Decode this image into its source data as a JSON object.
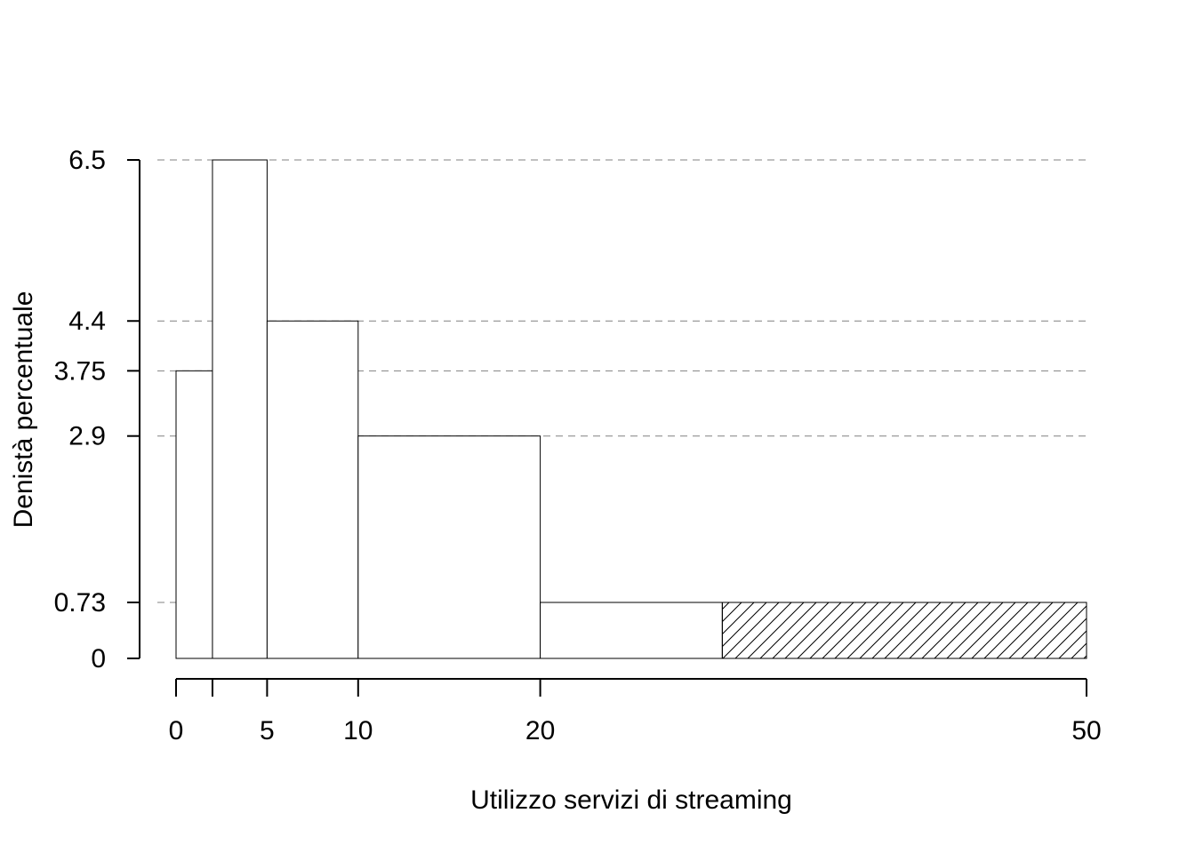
{
  "chart_data": {
    "type": "bar",
    "variant": "histogram",
    "title": "",
    "xlabel": "Utilizzo servizi di streaming",
    "ylabel": "Denistà percentuale",
    "bins": [
      {
        "start": 0,
        "end": 2,
        "density": 3.75,
        "hatched": false
      },
      {
        "start": 2,
        "end": 5,
        "density": 6.5,
        "hatched": false
      },
      {
        "start": 5,
        "end": 10,
        "density": 4.4,
        "hatched": false
      },
      {
        "start": 10,
        "end": 20,
        "density": 2.9,
        "hatched": false
      },
      {
        "start": 20,
        "end": 30,
        "density": 0.73,
        "hatched": false
      },
      {
        "start": 30,
        "end": 50,
        "density": 0.73,
        "hatched": true
      }
    ],
    "x_ticks": [
      0,
      2,
      5,
      10,
      20,
      50
    ],
    "x_tick_labels": [
      "0",
      "",
      "5",
      "10",
      "20",
      "50"
    ],
    "y_ticks": [
      0,
      0.73,
      2.9,
      3.75,
      4.4,
      6.5
    ],
    "y_tick_labels": [
      "0",
      "0.73",
      "2.9",
      "3.75",
      "4.4",
      "6.5"
    ],
    "reference_lines": [
      0.73,
      2.9,
      3.75,
      4.4,
      6.5
    ],
    "xlim": [
      0,
      50
    ],
    "ylim": [
      0,
      6.5
    ],
    "grid": false,
    "legend": "none",
    "colors": {
      "bar_fill": "#ffffff",
      "bar_stroke": "#000000",
      "hatch": "#000000",
      "reference_line": "#808080"
    }
  }
}
